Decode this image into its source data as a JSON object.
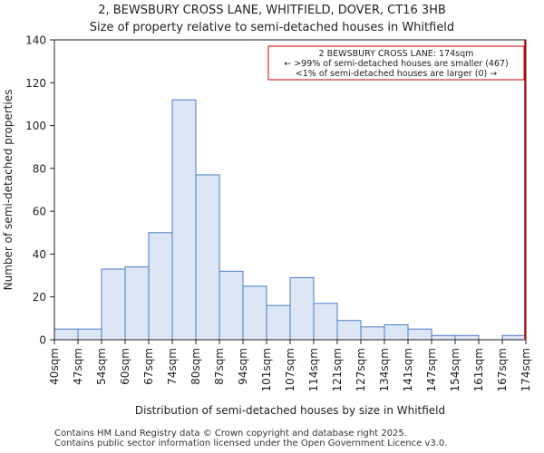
{
  "chart_data": {
    "type": "bar",
    "title_line1": "2, BEWSBURY CROSS LANE, WHITFIELD, DOVER, CT16 3HB",
    "title_line2": "Size of property relative to semi-detached houses in Whitfield",
    "xlabel": "Distribution of semi-detached houses by size in Whitfield",
    "ylabel": "Number of semi-detached properties",
    "ylim": [
      0,
      140
    ],
    "yticks": [
      0,
      20,
      40,
      60,
      80,
      100,
      120,
      140
    ],
    "tick_labels": [
      "40sqm",
      "47sqm",
      "54sqm",
      "60sqm",
      "67sqm",
      "74sqm",
      "80sqm",
      "87sqm",
      "94sqm",
      "101sqm",
      "107sqm",
      "114sqm",
      "121sqm",
      "127sqm",
      "134sqm",
      "141sqm",
      "147sqm",
      "154sqm",
      "161sqm",
      "167sqm",
      "174sqm"
    ],
    "values": [
      5,
      5,
      33,
      34,
      50,
      112,
      77,
      32,
      25,
      16,
      29,
      17,
      9,
      6,
      7,
      5,
      2,
      2,
      0,
      2
    ],
    "bar_color": "#dce6f5",
    "bar_edge_color": "#4a7ec4",
    "marker_color": "#cc0000",
    "marker_index": 20,
    "annotation": {
      "line1": "2 BEWSBURY CROSS LANE: 174sqm",
      "line2": "← >99% of semi-detached houses are smaller (467)",
      "line3": "<1% of semi-detached houses are larger (0) →"
    }
  },
  "footer": {
    "line1": "Contains HM Land Registry data © Crown copyright and database right 2025.",
    "line2": "Contains public sector information licensed under the Open Government Licence v3.0."
  }
}
